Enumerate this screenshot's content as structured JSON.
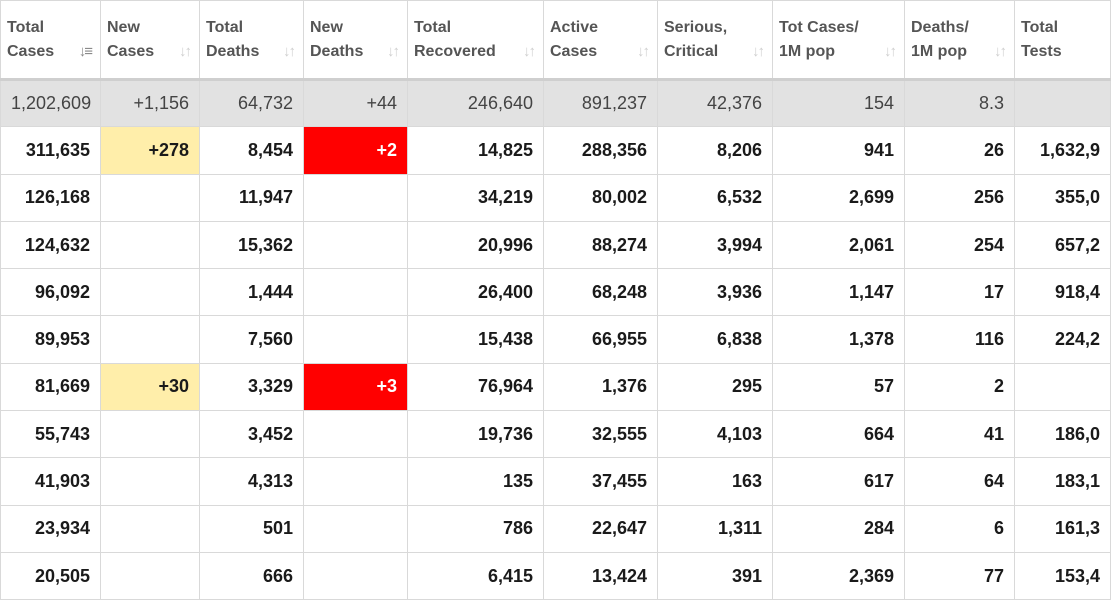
{
  "colors": {
    "new_cases_highlight": "#FFEEAA",
    "new_deaths_highlight": "#ff0000",
    "total_row_bg": "#e2e2e2"
  },
  "columns": [
    {
      "label": "Total\nCases",
      "icon": "sort-desc-icon",
      "glyph": "↓≡"
    },
    {
      "label": "New\nCases",
      "icon": "sort-icon",
      "glyph": "↓↑"
    },
    {
      "label": "Total\nDeaths",
      "icon": "sort-icon",
      "glyph": "↓↑"
    },
    {
      "label": "New\nDeaths",
      "icon": "sort-icon",
      "glyph": "↓↑"
    },
    {
      "label": "Total\nRecovered",
      "icon": "sort-icon",
      "glyph": "↓↑"
    },
    {
      "label": "Active\nCases",
      "icon": "sort-icon",
      "glyph": "↓↑"
    },
    {
      "label": "Serious,\nCritical",
      "icon": "sort-icon",
      "glyph": "↓↑"
    },
    {
      "label": "Tot Cases/\n1M pop",
      "icon": "sort-icon",
      "glyph": "↓↑"
    },
    {
      "label": "Deaths/\n1M pop",
      "icon": "sort-icon",
      "glyph": "↓↑"
    },
    {
      "label": "Total\nTests",
      "icon": "sort-icon",
      "glyph": ""
    }
  ],
  "total_row": [
    "1,202,609",
    "+1,156",
    "64,732",
    "+44",
    "246,640",
    "891,237",
    "42,376",
    "154",
    "8.3",
    ""
  ],
  "rows": [
    [
      "311,635",
      "+278",
      "8,454",
      "+2",
      "14,825",
      "288,356",
      "8,206",
      "941",
      "26",
      "1,632,9"
    ],
    [
      "126,168",
      "",
      "11,947",
      "",
      "34,219",
      "80,002",
      "6,532",
      "2,699",
      "256",
      "355,0"
    ],
    [
      "124,632",
      "",
      "15,362",
      "",
      "20,996",
      "88,274",
      "3,994",
      "2,061",
      "254",
      "657,2"
    ],
    [
      "96,092",
      "",
      "1,444",
      "",
      "26,400",
      "68,248",
      "3,936",
      "1,147",
      "17",
      "918,4"
    ],
    [
      "89,953",
      "",
      "7,560",
      "",
      "15,438",
      "66,955",
      "6,838",
      "1,378",
      "116",
      "224,2"
    ],
    [
      "81,669",
      "+30",
      "3,329",
      "+3",
      "76,964",
      "1,376",
      "295",
      "57",
      "2",
      ""
    ],
    [
      "55,743",
      "",
      "3,452",
      "",
      "19,736",
      "32,555",
      "4,103",
      "664",
      "41",
      "186,0"
    ],
    [
      "41,903",
      "",
      "4,313",
      "",
      "135",
      "37,455",
      "163",
      "617",
      "64",
      "183,1"
    ],
    [
      "23,934",
      "",
      "501",
      "",
      "786",
      "22,647",
      "1,311",
      "284",
      "6",
      "161,3"
    ],
    [
      "20,505",
      "",
      "666",
      "",
      "6,415",
      "13,424",
      "391",
      "2,369",
      "77",
      "153,4"
    ]
  ]
}
